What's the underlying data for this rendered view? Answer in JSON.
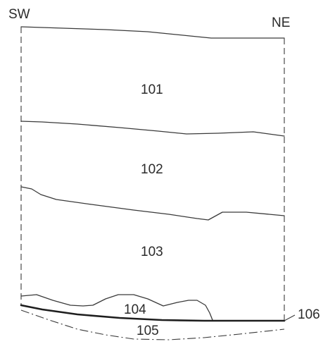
{
  "orientation": {
    "left": "SW",
    "right": "NE"
  },
  "layers": {
    "l101": "101",
    "l102": "102",
    "l103": "103",
    "l104": "104",
    "l105": "105",
    "l106": "106"
  }
}
